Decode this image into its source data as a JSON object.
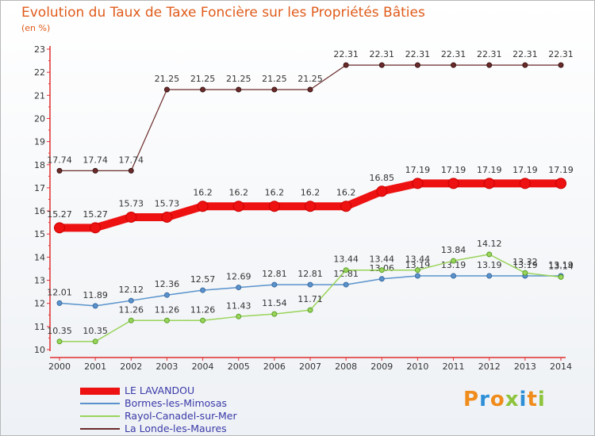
{
  "header": {
    "title": "Evolution du Taux de Taxe Foncière sur les Propriétés Bâties",
    "unit": "(en %)"
  },
  "logo": {
    "text": "Proxiti",
    "letter_colors": [
      "#f08c1c",
      "#2f8fd6",
      "#f08c1c",
      "#8dc43c",
      "#2f8fd6",
      "#f08c1c",
      "#8dc43c"
    ]
  },
  "chart_data": {
    "type": "line",
    "x": [
      "2000",
      "2001",
      "2002",
      "2003",
      "2004",
      "2005",
      "2006",
      "2007",
      "2008",
      "2009",
      "2010",
      "2011",
      "2012",
      "2013",
      "2014"
    ],
    "ylim": [
      10,
      23
    ],
    "yticks": [
      "10",
      "11",
      "12",
      "13",
      "14",
      "15",
      "16",
      "17",
      "18",
      "19",
      "20",
      "21",
      "22",
      "23"
    ],
    "grid": false,
    "series": [
      {
        "name": "La Londe-les-Maures",
        "color": "#6b2b2b",
        "values": [
          17.74,
          17.74,
          17.74,
          21.25,
          21.25,
          21.25,
          21.25,
          21.25,
          22.31,
          22.31,
          22.31,
          22.31,
          22.31,
          22.31,
          22.31
        ]
      },
      {
        "name": "Bormes-les-Mimosas",
        "color": "#5a93cc",
        "values": [
          12.01,
          11.89,
          12.12,
          12.36,
          12.57,
          12.69,
          12.81,
          12.81,
          12.81,
          13.06,
          13.19,
          13.19,
          13.19,
          13.19,
          13.19
        ]
      },
      {
        "name": "Rayol-Canadel-sur-Mer",
        "color": "#9ad45a",
        "values": [
          10.35,
          10.35,
          11.26,
          11.26,
          11.26,
          11.43,
          11.54,
          11.71,
          13.44,
          13.44,
          13.44,
          13.84,
          14.12,
          13.32,
          13.14
        ]
      },
      {
        "name": "LE LAVANDOU",
        "color": "#ee1111",
        "values": [
          15.27,
          15.27,
          15.73,
          15.73,
          16.2,
          16.2,
          16.2,
          16.2,
          16.2,
          16.85,
          17.19,
          17.19,
          17.19,
          17.19,
          17.19
        ]
      }
    ],
    "data_labels": [
      [
        "17.74",
        "17.74",
        "17.74",
        "21.25",
        "21.25",
        "21.25",
        "21.25",
        "21.25",
        "22.31",
        "22.31",
        "22.31",
        "22.31",
        "22.31",
        "22.31",
        "22.31"
      ],
      [
        "12.01",
        "11.89",
        "12.12",
        "12.36",
        "12.57",
        "12.69",
        "12.81",
        "12.81",
        "12.81",
        "13.06",
        "13.19",
        "13.19",
        "13.19",
        "13.19",
        "13.19"
      ],
      [
        "10.35",
        "10.35",
        "11.26",
        "11.26",
        "11.26",
        "11.43",
        "11.54",
        "11.71",
        "13.44",
        "13.44",
        "13.44",
        "13.84",
        "14.12",
        "13.32",
        "13.14"
      ],
      [
        "15.27",
        "15.27",
        "15.73",
        "15.73",
        "16.2",
        "16.2",
        "16.2",
        "16.2",
        "16.2",
        "16.85",
        "17.19",
        "17.19",
        "17.19",
        "17.19",
        "17.19"
      ]
    ],
    "legend": {
      "position": "bottom-left",
      "entries": [
        "LE LAVANDOU",
        "Bormes-les-Mimosas",
        "Rayol-Canadel-sur-Mer",
        "La Londe-les-Maures"
      ],
      "colors": [
        "#ee1111",
        "#5a93cc",
        "#9ad45a",
        "#6b2b2b"
      ]
    }
  }
}
